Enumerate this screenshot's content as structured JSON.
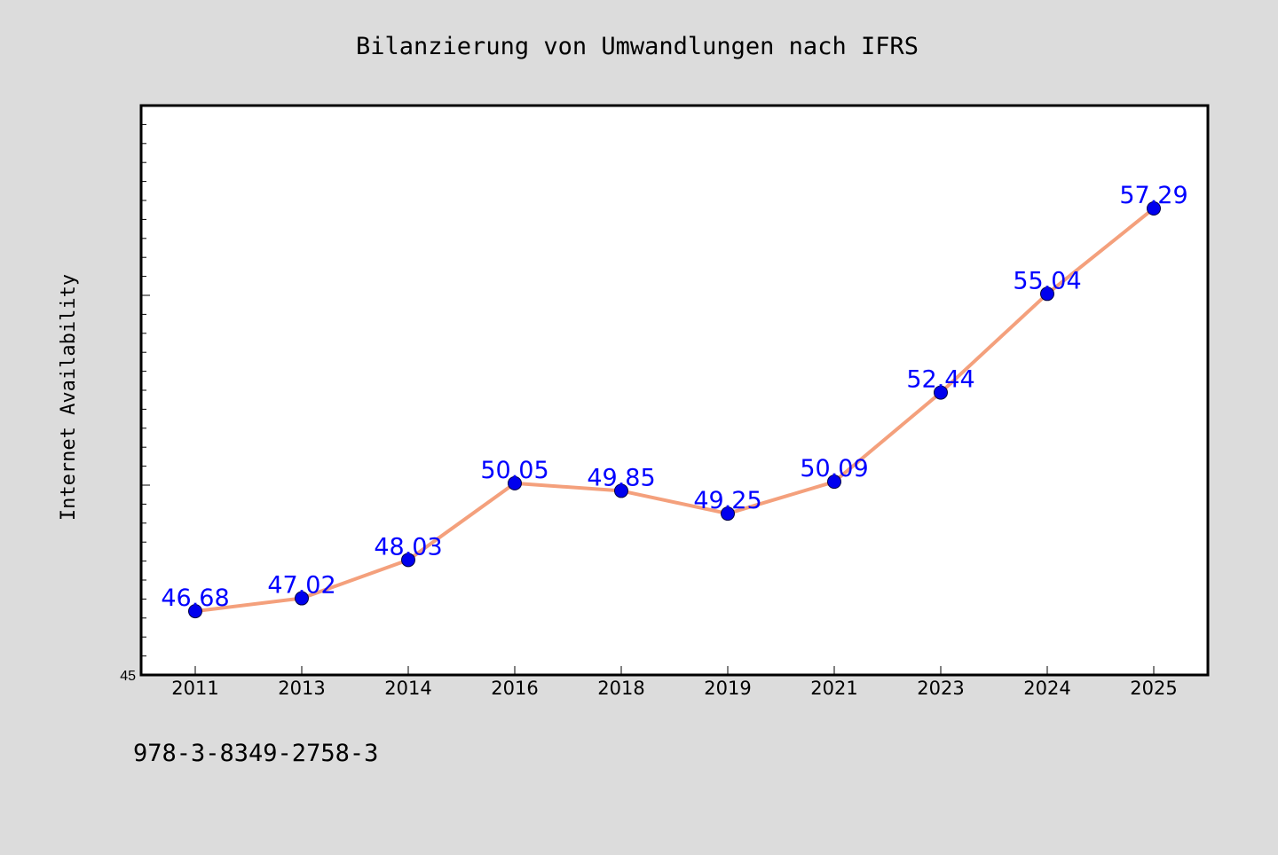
{
  "chart_data": {
    "type": "line",
    "title": "Bilanzierung von Umwandlungen nach IFRS",
    "ylabel": "Internet Availability",
    "xlabel": "",
    "categories": [
      "2011",
      "2013",
      "2014",
      "2016",
      "2018",
      "2019",
      "2021",
      "2023",
      "2024",
      "2025"
    ],
    "series": [
      {
        "values": [
          46.68,
          47.02,
          48.03,
          50.05,
          49.85,
          49.25,
          50.09,
          52.44,
          55.04,
          57.29
        ],
        "labels": [
          "46.68",
          "47.02",
          "48.03",
          "50.05",
          "49.85",
          "49.25",
          "50.09",
          "52.44",
          "55.04",
          "57.29"
        ],
        "line_color": "#f4a07c",
        "marker_color": "#0000ee",
        "label_color": "#0000ff"
      }
    ],
    "ylim": [
      45,
      60
    ],
    "y_tick_label": "45",
    "grid": false,
    "legend": "none"
  },
  "footer": {
    "isbn": "978-3-8349-2758-3"
  },
  "colors": {
    "background": "#dcdcdc",
    "plot_background": "#ffffff",
    "axis": "#000000"
  }
}
